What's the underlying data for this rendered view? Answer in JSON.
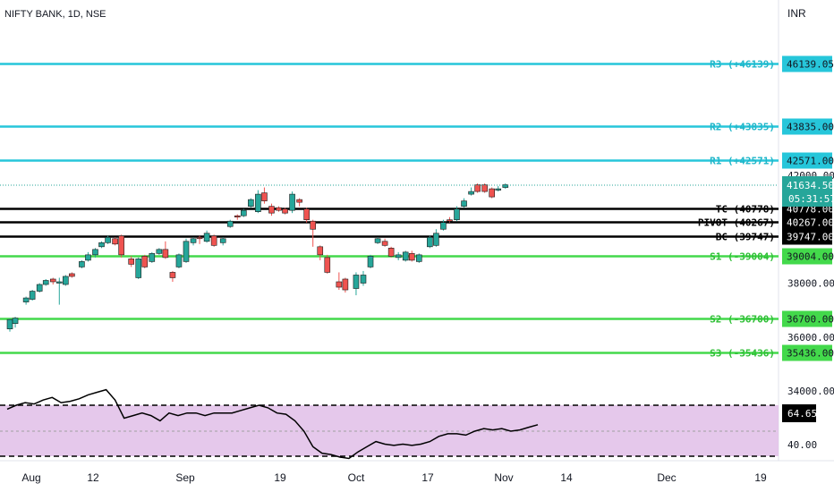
{
  "header": {
    "symbol": "NIFTY BANK, 1D, NSE",
    "currency": "INR"
  },
  "chart_data": {
    "type": "candlestick",
    "price_scale": {
      "min": 34000,
      "max": 46800,
      "ticks": [
        "42000.00",
        "38000.00",
        "36000.00",
        "34000.00"
      ]
    },
    "time_labels": [
      "Aug",
      "12",
      "Sep",
      "19",
      "Oct",
      "17",
      "Nov",
      "14",
      "Dec",
      "19"
    ],
    "candles": [
      [
        0.3,
        36300,
        36650,
        36200,
        36680
      ],
      [
        0.9,
        36500,
        36700,
        36350,
        36750
      ],
      [
        2.1,
        37300,
        37450,
        37200,
        37500
      ],
      [
        2.8,
        37400,
        37700,
        37350,
        37750
      ],
      [
        3.6,
        37700,
        37950,
        37650,
        38000
      ],
      [
        4.3,
        37950,
        38100,
        37900,
        38150
      ],
      [
        5.1,
        38150,
        38050,
        37950,
        38200
      ],
      [
        5.8,
        38000,
        38050,
        37200,
        38200
      ],
      [
        6.5,
        37950,
        38250,
        37900,
        38300
      ],
      [
        7.2,
        38350,
        38250,
        38200,
        38400
      ],
      [
        8.3,
        38600,
        38800,
        38550,
        38850
      ],
      [
        9.0,
        38850,
        39050,
        38800,
        39150
      ],
      [
        9.8,
        39050,
        39250,
        38950,
        39300
      ],
      [
        10.5,
        39350,
        39500,
        39300,
        39550
      ],
      [
        11.2,
        39500,
        39700,
        39450,
        39750
      ],
      [
        12.0,
        39650,
        39450,
        39400,
        39700
      ],
      [
        12.7,
        39750,
        39050,
        38950,
        39800
      ],
      [
        13.8,
        38900,
        38700,
        38600,
        39000
      ],
      [
        14.6,
        38200,
        38900,
        38150,
        38950
      ],
      [
        15.3,
        39000,
        38600,
        38550,
        39050
      ],
      [
        16.1,
        38800,
        39100,
        38750,
        39150
      ],
      [
        16.9,
        39100,
        39250,
        39050,
        39300
      ],
      [
        17.6,
        39250,
        38950,
        38900,
        39550
      ],
      [
        18.4,
        38400,
        38200,
        38050,
        38450
      ],
      [
        19.1,
        38600,
        39050,
        38550,
        39100
      ],
      [
        19.9,
        38800,
        39550,
        38750,
        39650
      ],
      [
        20.7,
        39500,
        39650,
        39400,
        39700
      ],
      [
        21.4,
        39700,
        39650,
        39450,
        39750
      ],
      [
        22.2,
        39550,
        39850,
        39500,
        39950
      ],
      [
        23.0,
        39750,
        39400,
        39350,
        39800
      ],
      [
        24.0,
        39500,
        39650,
        39400,
        39700
      ],
      [
        24.8,
        40100,
        40300,
        40050,
        40350
      ],
      [
        25.6,
        40500,
        40450,
        40350,
        40550
      ],
      [
        26.3,
        40500,
        40700,
        40450,
        40750
      ],
      [
        27.1,
        40850,
        41100,
        40800,
        41150
      ],
      [
        27.9,
        40650,
        41300,
        40600,
        41450
      ],
      [
        28.6,
        41350,
        41050,
        40950,
        41550
      ],
      [
        29.4,
        40850,
        40600,
        40500,
        40950
      ],
      [
        30.2,
        40800,
        40700,
        40650,
        40850
      ],
      [
        30.9,
        40750,
        40600,
        40550,
        40800
      ],
      [
        31.7,
        40700,
        41300,
        40600,
        41400
      ],
      [
        32.5,
        41100,
        41000,
        40850,
        41150
      ],
      [
        33.3,
        40750,
        40350,
        40250,
        40800
      ],
      [
        34.0,
        40300,
        40000,
        39350,
        40350
      ],
      [
        34.8,
        39350,
        39050,
        38850,
        39400
      ],
      [
        35.6,
        38950,
        38400,
        38350,
        39050
      ],
      [
        36.9,
        38050,
        37850,
        37750,
        38400
      ],
      [
        37.6,
        38150,
        37750,
        37650,
        38200
      ],
      [
        38.8,
        37800,
        38300,
        37550,
        38400
      ],
      [
        39.6,
        38000,
        38300,
        37900,
        38450
      ],
      [
        40.4,
        38600,
        39000,
        38550,
        39050
      ],
      [
        41.2,
        39500,
        39650,
        39450,
        39700
      ],
      [
        42.0,
        39550,
        39400,
        39350,
        39650
      ],
      [
        42.7,
        39300,
        39000,
        38950,
        39350
      ],
      [
        43.5,
        38950,
        39050,
        38850,
        39150
      ],
      [
        44.3,
        38850,
        39150,
        38800,
        39200
      ],
      [
        45.0,
        39100,
        38850,
        38800,
        39200
      ],
      [
        45.8,
        38800,
        39050,
        38750,
        39100
      ],
      [
        47.0,
        39350,
        39700,
        39300,
        39750
      ],
      [
        47.7,
        39400,
        39850,
        39350,
        40000
      ],
      [
        48.5,
        40000,
        40250,
        39950,
        40350
      ],
      [
        49.2,
        40350,
        40300,
        40250,
        40450
      ],
      [
        50.0,
        40350,
        40750,
        40300,
        40850
      ],
      [
        50.8,
        40850,
        41050,
        40800,
        41150
      ],
      [
        51.6,
        41300,
        41400,
        41250,
        41550
      ],
      [
        52.3,
        41650,
        41400,
        41350,
        41700
      ],
      [
        53.1,
        41650,
        41400,
        41350,
        41700
      ],
      [
        53.9,
        41500,
        41200,
        41150,
        41550
      ],
      [
        54.6,
        41450,
        41500,
        41400,
        41600
      ],
      [
        55.4,
        41550,
        41650,
        41500,
        41700
      ]
    ],
    "pivot_levels": [
      {
        "label": "R3 (+46139)",
        "price": 46139.05,
        "value": "46139.05",
        "color": "#26c6da"
      },
      {
        "label": "R2 (+43835)",
        "price": 43835,
        "value": "43835.00",
        "color": "#26c6da"
      },
      {
        "label": "R1 (+42571)",
        "price": 42571,
        "value": "42571.00",
        "color": "#26c6da"
      },
      {
        "label": "TC (40778)",
        "price": 40778,
        "value": "40778.00",
        "color": "#000000"
      },
      {
        "label": "PIVOT (40267)",
        "price": 40267,
        "value": "40267.00",
        "color": "#000000"
      },
      {
        "label": "BC (39747)",
        "price": 39747,
        "value": "39747.00",
        "color": "#000000"
      },
      {
        "label": "S1 (-39004)",
        "price": 39004,
        "value": "39004.00",
        "color": "#43d94b"
      },
      {
        "label": "S2 (-36700)",
        "price": 36700,
        "value": "36700.00",
        "color": "#43d94b"
      },
      {
        "label": "S3 (-35436)",
        "price": 35436,
        "value": "35436.00",
        "color": "#43d94b"
      }
    ],
    "last_price": {
      "value": "41634.50",
      "countdown": "05:31:57",
      "price": 41634.5
    },
    "rsi": {
      "current": "64.65",
      "tick": "40.00",
      "upper": 70,
      "lower": 30,
      "values": [
        [
          0,
          67
        ],
        [
          1,
          70
        ],
        [
          2,
          72
        ],
        [
          3,
          71
        ],
        [
          4,
          74
        ],
        [
          5,
          76
        ],
        [
          6,
          72
        ],
        [
          7,
          73
        ],
        [
          8,
          75
        ],
        [
          9,
          78
        ],
        [
          10,
          80
        ],
        [
          11,
          82
        ],
        [
          12,
          74
        ],
        [
          13,
          60
        ],
        [
          14,
          62
        ],
        [
          15,
          64
        ],
        [
          16,
          62
        ],
        [
          17,
          58
        ],
        [
          18,
          64
        ],
        [
          19,
          62
        ],
        [
          20,
          64
        ],
        [
          21,
          64
        ],
        [
          22,
          62
        ],
        [
          23,
          64
        ],
        [
          24,
          64
        ],
        [
          25,
          64
        ],
        [
          26,
          66
        ],
        [
          27,
          68
        ],
        [
          28,
          70
        ],
        [
          29,
          68
        ],
        [
          30,
          64
        ],
        [
          31,
          63
        ],
        [
          32,
          58
        ],
        [
          33,
          50
        ],
        [
          34,
          38
        ],
        [
          35,
          33
        ],
        [
          36,
          32
        ],
        [
          37,
          30
        ],
        [
          38,
          29
        ],
        [
          39,
          34
        ],
        [
          40,
          38
        ],
        [
          41,
          42
        ],
        [
          42,
          40
        ],
        [
          43,
          39
        ],
        [
          44,
          40
        ],
        [
          45,
          39
        ],
        [
          46,
          40
        ],
        [
          47,
          42
        ],
        [
          48,
          46
        ],
        [
          49,
          48
        ],
        [
          50,
          48
        ],
        [
          51,
          47
        ],
        [
          52,
          50
        ],
        [
          53,
          52
        ],
        [
          54,
          51
        ],
        [
          55,
          52
        ],
        [
          56,
          50
        ],
        [
          57,
          51
        ],
        [
          58,
          53
        ],
        [
          59,
          55
        ]
      ]
    },
    "colors": {
      "up": "#26a69a",
      "down": "#ef5350",
      "rsi_band": "#e1bee7",
      "rsi_line": "#000000"
    }
  }
}
